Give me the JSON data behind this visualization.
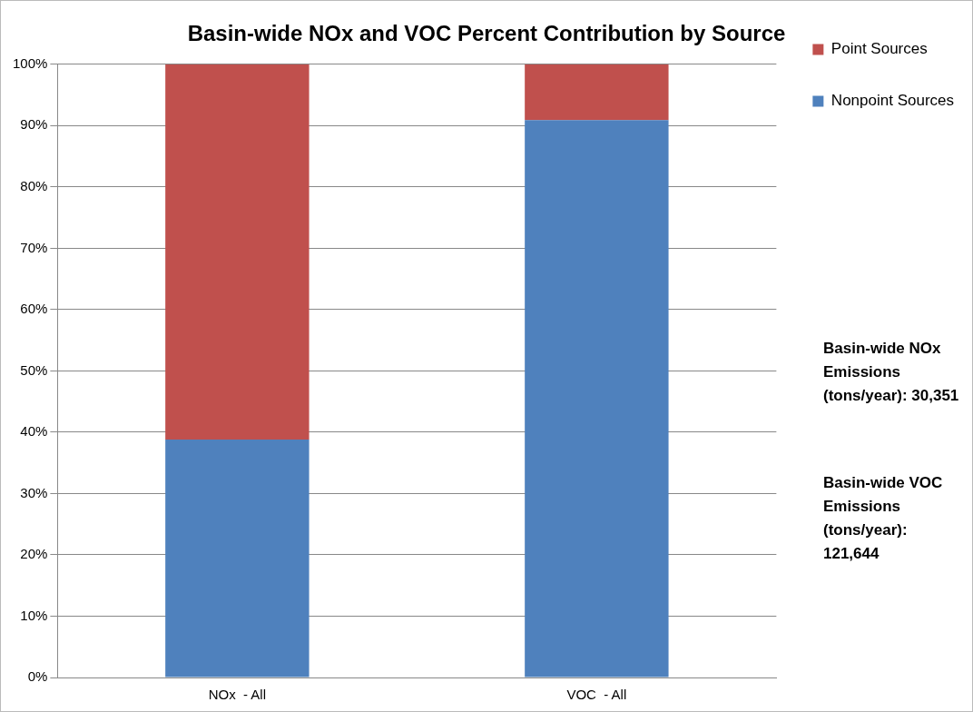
{
  "chart_data": {
    "type": "bar",
    "title": "Basin-wide NOx and VOC Percent Contribution by Source",
    "categories": [
      "NOx  - All",
      "VOC  - All"
    ],
    "stacked": true,
    "ylim": [
      0,
      100
    ],
    "yticks": [
      {
        "value": 0,
        "label": "0%"
      },
      {
        "value": 10,
        "label": "10%"
      },
      {
        "value": 20,
        "label": "20%"
      },
      {
        "value": 30,
        "label": "30%"
      },
      {
        "value": 40,
        "label": "40%"
      },
      {
        "value": 50,
        "label": "50%"
      },
      {
        "value": 60,
        "label": "60%"
      },
      {
        "value": 70,
        "label": "70%"
      },
      {
        "value": 80,
        "label": "80%"
      },
      {
        "value": 90,
        "label": "90%"
      },
      {
        "value": 100,
        "label": "100%"
      }
    ],
    "series": [
      {
        "name": "Nonpoint Sources",
        "color": "#4f81bd",
        "values": [
          38.8,
          90.9
        ]
      },
      {
        "name": "Point Sources",
        "color": "#c0504d",
        "values": [
          61.2,
          9.1
        ]
      }
    ],
    "grid": "y",
    "legend": "right",
    "annotations": [
      "Basin-wide NOx Emissions (tons/year): 30,351",
      "Basin-wide VOC Emissions (tons/year): 121,644"
    ]
  }
}
